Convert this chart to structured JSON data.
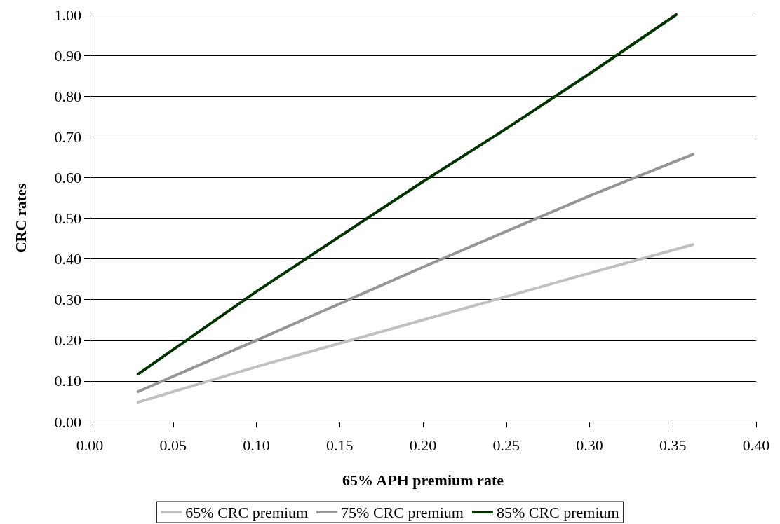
{
  "chart_data": {
    "type": "line",
    "xlabel": "65% APH premium rate",
    "ylabel": "CRC rates",
    "x": [
      0.029,
      0.1,
      0.2,
      0.3,
      0.362
    ],
    "series": [
      {
        "name": "65% CRC premium",
        "color": "#c0c0c0",
        "values": [
          0.048,
          0.135,
          0.25,
          0.365,
          0.435
        ]
      },
      {
        "name": "75% CRC premium",
        "color": "#969696",
        "values": [
          0.074,
          0.2,
          0.38,
          0.555,
          0.657
        ]
      },
      {
        "name": "85% CRC premium",
        "color": "#003300",
        "x": [
          0.029,
          0.1,
          0.2,
          0.25,
          0.3,
          0.352
        ],
        "values": [
          0.117,
          0.32,
          0.59,
          0.72,
          0.855,
          1.0
        ]
      }
    ],
    "xlim": [
      0,
      0.4
    ],
    "xticks": [
      {
        "value": 0,
        "label": "0.00"
      },
      {
        "value": 0.05,
        "label": "0.05"
      },
      {
        "value": 0.1,
        "label": "0.10"
      },
      {
        "value": 0.15,
        "label": "0.15"
      },
      {
        "value": 0.2,
        "label": "0.20"
      },
      {
        "value": 0.25,
        "label": "0.25"
      },
      {
        "value": 0.3,
        "label": "0.30"
      },
      {
        "value": 0.35,
        "label": "0.35"
      },
      {
        "value": 0.4,
        "label": "0.40"
      }
    ],
    "ylim": [
      0,
      1
    ],
    "yticks": [
      {
        "value": 0,
        "label": "0.00"
      },
      {
        "value": 0.1,
        "label": "0.10"
      },
      {
        "value": 0.2,
        "label": "0.20"
      },
      {
        "value": 0.3,
        "label": "0.30"
      },
      {
        "value": 0.4,
        "label": "0.40"
      },
      {
        "value": 0.5,
        "label": "0.50"
      },
      {
        "value": 0.6,
        "label": "0.60"
      },
      {
        "value": 0.7,
        "label": "0.70"
      },
      {
        "value": 0.8,
        "label": "0.80"
      },
      {
        "value": 0.9,
        "label": "0.90"
      },
      {
        "value": 1.0,
        "label": "1.00"
      }
    ],
    "grid": "y",
    "legend": "bottom",
    "marker": "none",
    "line_style": "solid"
  }
}
